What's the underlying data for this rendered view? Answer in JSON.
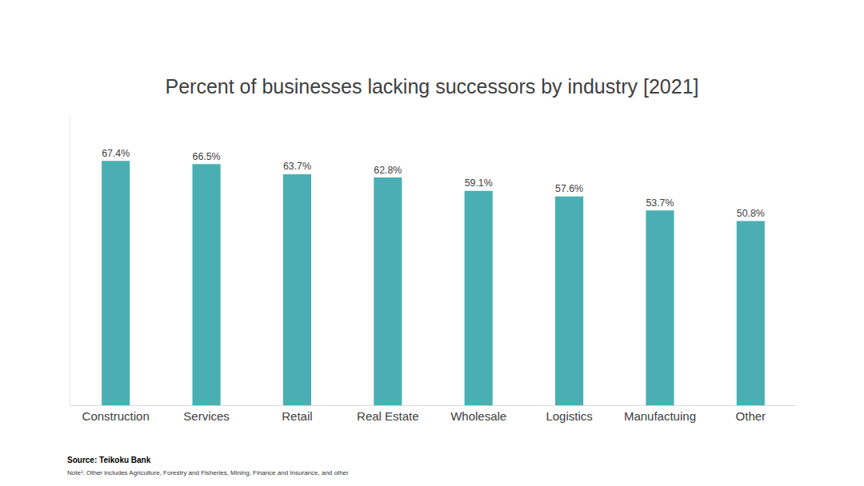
{
  "chart_data": {
    "type": "bar",
    "title": "Percent of businesses lacking successors by industry [2021]",
    "categories": [
      "Construction",
      "Services",
      "Retail",
      "Real Estate",
      "Wholesale",
      "Logistics",
      "Manufactuing",
      "Other"
    ],
    "values": [
      67.4,
      66.5,
      63.7,
      62.8,
      59.1,
      57.6,
      53.7,
      50.8
    ],
    "value_labels": [
      "67.4%",
      "66.5%",
      "63.7%",
      "62.8%",
      "59.1%",
      "57.6%",
      "53.7%",
      "50.8%"
    ],
    "color": "#4aafb3",
    "ylim": [
      0,
      80
    ],
    "grid": false,
    "data_labels": true,
    "tick_labels": "x",
    "source": "Source: Teikoku Bank",
    "note": "Note¹: Other includes Agriculture, Forestry and Fisheries, Mining, Finance and Insurance, and other"
  }
}
